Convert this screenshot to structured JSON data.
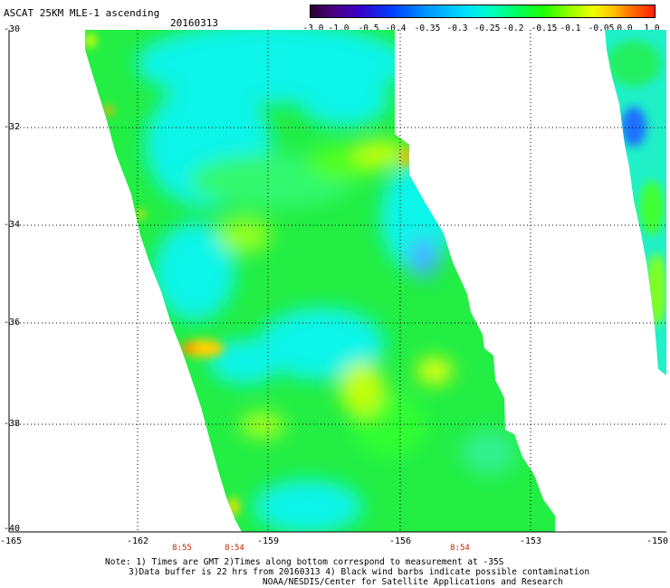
{
  "header": {
    "title": "ASCAT 25KM MLE-1 ascending",
    "date": "20160313"
  },
  "colorbar": {
    "labels": [
      "-3.0",
      "-1.0",
      "-0.5",
      "-0.4",
      "-0.35",
      "-0.3",
      "-0.25",
      "-0.2",
      "-0.15",
      "-0.1",
      "-0.05",
      "0.0",
      "1.0"
    ]
  },
  "map": {
    "lat_labels": [
      "-30",
      "-32",
      "-34",
      "-36",
      "-38",
      "-40"
    ],
    "lon_labels": [
      "-165",
      "-162",
      "-159",
      "-156",
      "-153",
      "-150"
    ],
    "time_labels": [
      "8:55",
      "8:54",
      "8:54"
    ]
  },
  "notes": {
    "line1": "Note: 1) Times are GMT 2)Times along bottom correspond to measurement at -35S",
    "line2": "3)Data buffer is 22 hrs from 20160313 4) Black wind barbs indicate possible contamination",
    "line3": "NOAA/NESDIS/Center for Satellite Applications and Research"
  },
  "colors": {
    "background": "#ffffff",
    "swath_base": "#20ee40",
    "swath_cyan": "#10f0e0",
    "hot": "#ff9a00"
  }
}
